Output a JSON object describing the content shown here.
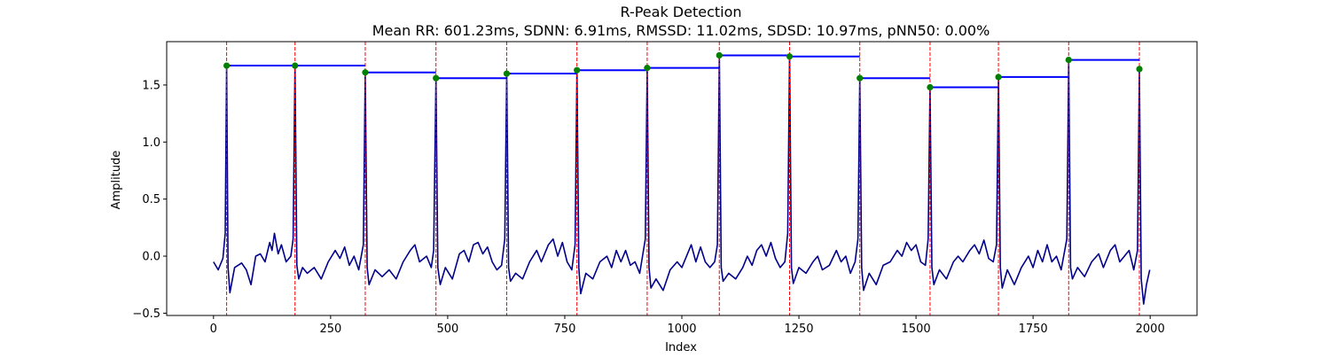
{
  "chart_data": {
    "type": "line",
    "title": "R-Peak Detection",
    "subtitle": "Mean RR: 601.23ms, SDNN: 6.91ms, RMSSD: 11.02ms, SDSD: 10.97ms, pNN50: 0.00%",
    "xlabel": "Index",
    "ylabel": "Amplitude",
    "xlim": [
      -100,
      2100
    ],
    "ylim": [
      -0.52,
      1.88
    ],
    "xticks": [
      0,
      250,
      500,
      750,
      1000,
      1250,
      1500,
      1750,
      2000
    ],
    "xtick_labels": [
      "0",
      "250",
      "500",
      "750",
      "1000",
      "1250",
      "1500",
      "1750",
      "2000"
    ],
    "yticks": [
      -0.5,
      0.0,
      0.5,
      1.0,
      1.5
    ],
    "ytick_labels": [
      "−0.5",
      "0.0",
      "0.5",
      "1.0",
      "1.5"
    ],
    "grid": false,
    "colors": {
      "signal": "#00008b",
      "peak_line": "#ff0000",
      "peak_marker": "#008000",
      "rr_segment": "#0000ff"
    },
    "series": [
      {
        "values_note_free": true,
        "x_range": [
          0,
          1999
        ],
        "baseline_level": -0.05,
        "points": [
          [
            0,
            -0.05
          ],
          [
            10,
            -0.12
          ],
          [
            20,
            -0.02
          ],
          [
            25,
            0.2
          ],
          [
            28,
            1.66
          ],
          [
            31,
            -0.1
          ],
          [
            35,
            -0.32
          ],
          [
            45,
            -0.1
          ],
          [
            60,
            -0.06
          ],
          [
            70,
            -0.12
          ],
          [
            80,
            -0.25
          ],
          [
            90,
            0.0
          ],
          [
            100,
            0.02
          ],
          [
            110,
            -0.05
          ],
          [
            120,
            0.12
          ],
          [
            125,
            0.05
          ],
          [
            130,
            0.2
          ],
          [
            138,
            0.02
          ],
          [
            145,
            0.1
          ],
          [
            155,
            -0.05
          ],
          [
            165,
            0.0
          ],
          [
            170,
            0.15
          ],
          [
            174,
            1.67
          ],
          [
            178,
            -0.08
          ],
          [
            182,
            -0.2
          ],
          [
            190,
            -0.1
          ],
          [
            200,
            -0.15
          ],
          [
            215,
            -0.1
          ],
          [
            230,
            -0.2
          ],
          [
            245,
            -0.05
          ],
          [
            260,
            0.05
          ],
          [
            270,
            -0.02
          ],
          [
            280,
            0.08
          ],
          [
            290,
            -0.08
          ],
          [
            300,
            0.0
          ],
          [
            310,
            -0.12
          ],
          [
            320,
            0.1
          ],
          [
            324,
            1.6
          ],
          [
            328,
            -0.1
          ],
          [
            332,
            -0.25
          ],
          [
            345,
            -0.12
          ],
          [
            360,
            -0.18
          ],
          [
            375,
            -0.12
          ],
          [
            390,
            -0.2
          ],
          [
            405,
            -0.05
          ],
          [
            420,
            0.05
          ],
          [
            430,
            0.1
          ],
          [
            440,
            -0.05
          ],
          [
            455,
            0.0
          ],
          [
            465,
            -0.1
          ],
          [
            470,
            0.05
          ],
          [
            475,
            1.56
          ],
          [
            479,
            -0.1
          ],
          [
            484,
            -0.25
          ],
          [
            495,
            -0.1
          ],
          [
            510,
            -0.2
          ],
          [
            525,
            0.02
          ],
          [
            535,
            0.05
          ],
          [
            545,
            -0.05
          ],
          [
            555,
            0.1
          ],
          [
            565,
            0.12
          ],
          [
            575,
            0.02
          ],
          [
            585,
            0.08
          ],
          [
            595,
            -0.05
          ],
          [
            605,
            -0.12
          ],
          [
            615,
            -0.08
          ],
          [
            622,
            0.15
          ],
          [
            626,
            1.6
          ],
          [
            630,
            -0.1
          ],
          [
            634,
            -0.22
          ],
          [
            645,
            -0.15
          ],
          [
            660,
            -0.2
          ],
          [
            675,
            -0.05
          ],
          [
            690,
            0.05
          ],
          [
            700,
            -0.05
          ],
          [
            715,
            0.1
          ],
          [
            725,
            0.15
          ],
          [
            735,
            0.0
          ],
          [
            745,
            0.12
          ],
          [
            755,
            -0.05
          ],
          [
            765,
            -0.12
          ],
          [
            772,
            0.1
          ],
          [
            776,
            1.63
          ],
          [
            780,
            -0.1
          ],
          [
            784,
            -0.33
          ],
          [
            795,
            -0.15
          ],
          [
            810,
            -0.2
          ],
          [
            825,
            -0.05
          ],
          [
            840,
            0.0
          ],
          [
            850,
            -0.1
          ],
          [
            860,
            0.05
          ],
          [
            870,
            -0.05
          ],
          [
            880,
            0.05
          ],
          [
            890,
            -0.08
          ],
          [
            900,
            -0.05
          ],
          [
            910,
            -0.15
          ],
          [
            922,
            0.15
          ],
          [
            926,
            1.65
          ],
          [
            930,
            -0.1
          ],
          [
            934,
            -0.28
          ],
          [
            945,
            -0.2
          ],
          [
            960,
            -0.3
          ],
          [
            975,
            -0.12
          ],
          [
            990,
            -0.05
          ],
          [
            1000,
            -0.1
          ],
          [
            1010,
            0.0
          ],
          [
            1020,
            0.1
          ],
          [
            1030,
            -0.05
          ],
          [
            1040,
            0.08
          ],
          [
            1050,
            -0.05
          ],
          [
            1060,
            -0.1
          ],
          [
            1070,
            -0.05
          ],
          [
            1076,
            0.1
          ],
          [
            1080,
            1.76
          ],
          [
            1084,
            -0.1
          ],
          [
            1088,
            -0.22
          ],
          [
            1100,
            -0.15
          ],
          [
            1115,
            -0.2
          ],
          [
            1130,
            -0.1
          ],
          [
            1140,
            0.0
          ],
          [
            1150,
            -0.08
          ],
          [
            1160,
            0.05
          ],
          [
            1170,
            0.1
          ],
          [
            1180,
            0.0
          ],
          [
            1190,
            0.12
          ],
          [
            1200,
            -0.02
          ],
          [
            1210,
            -0.1
          ],
          [
            1220,
            -0.05
          ],
          [
            1226,
            0.2
          ],
          [
            1230,
            1.75
          ],
          [
            1234,
            -0.1
          ],
          [
            1238,
            -0.24
          ],
          [
            1250,
            -0.1
          ],
          [
            1265,
            -0.15
          ],
          [
            1280,
            -0.05
          ],
          [
            1290,
            0.0
          ],
          [
            1300,
            -0.12
          ],
          [
            1315,
            -0.08
          ],
          [
            1330,
            0.05
          ],
          [
            1340,
            -0.05
          ],
          [
            1350,
            0.0
          ],
          [
            1360,
            -0.15
          ],
          [
            1370,
            -0.05
          ],
          [
            1376,
            0.15
          ],
          [
            1380,
            1.56
          ],
          [
            1384,
            -0.1
          ],
          [
            1388,
            -0.3
          ],
          [
            1400,
            -0.15
          ],
          [
            1415,
            -0.25
          ],
          [
            1430,
            -0.08
          ],
          [
            1445,
            -0.05
          ],
          [
            1460,
            0.05
          ],
          [
            1470,
            0.0
          ],
          [
            1480,
            0.12
          ],
          [
            1490,
            0.05
          ],
          [
            1500,
            0.1
          ],
          [
            1510,
            -0.05
          ],
          [
            1520,
            -0.08
          ],
          [
            1526,
            0.15
          ],
          [
            1530,
            1.48
          ],
          [
            1534,
            -0.1
          ],
          [
            1538,
            -0.25
          ],
          [
            1550,
            -0.12
          ],
          [
            1565,
            -0.2
          ],
          [
            1580,
            -0.05
          ],
          [
            1590,
            0.0
          ],
          [
            1600,
            -0.05
          ],
          [
            1615,
            0.05
          ],
          [
            1625,
            0.1
          ],
          [
            1635,
            0.02
          ],
          [
            1645,
            0.14
          ],
          [
            1655,
            -0.02
          ],
          [
            1665,
            -0.05
          ],
          [
            1672,
            0.1
          ],
          [
            1676,
            1.57
          ],
          [
            1680,
            -0.1
          ],
          [
            1684,
            -0.28
          ],
          [
            1695,
            -0.12
          ],
          [
            1710,
            -0.25
          ],
          [
            1725,
            -0.1
          ],
          [
            1740,
            0.0
          ],
          [
            1750,
            -0.1
          ],
          [
            1760,
            0.05
          ],
          [
            1770,
            -0.05
          ],
          [
            1780,
            0.1
          ],
          [
            1790,
            -0.05
          ],
          [
            1800,
            0.0
          ],
          [
            1810,
            -0.12
          ],
          [
            1822,
            0.15
          ],
          [
            1826,
            1.72
          ],
          [
            1830,
            -0.1
          ],
          [
            1834,
            -0.2
          ],
          [
            1845,
            -0.1
          ],
          [
            1860,
            -0.18
          ],
          [
            1875,
            -0.05
          ],
          [
            1890,
            0.02
          ],
          [
            1900,
            -0.1
          ],
          [
            1915,
            0.05
          ],
          [
            1925,
            0.1
          ],
          [
            1935,
            -0.05
          ],
          [
            1945,
            0.0
          ],
          [
            1955,
            0.05
          ],
          [
            1965,
            -0.12
          ],
          [
            1973,
            0.05
          ],
          [
            1977,
            1.64
          ],
          [
            1981,
            -0.2
          ],
          [
            1986,
            -0.42
          ],
          [
            1992,
            -0.25
          ],
          [
            1999,
            -0.12
          ]
        ]
      }
    ],
    "peaks": {
      "x": [
        28,
        174,
        324,
        475,
        626,
        776,
        926,
        1080,
        1230,
        1380,
        1530,
        1676,
        1826,
        1977
      ],
      "y": [
        1.67,
        1.67,
        1.61,
        1.56,
        1.6,
        1.63,
        1.65,
        1.76,
        1.75,
        1.56,
        1.48,
        1.57,
        1.72,
        1.64
      ]
    }
  }
}
